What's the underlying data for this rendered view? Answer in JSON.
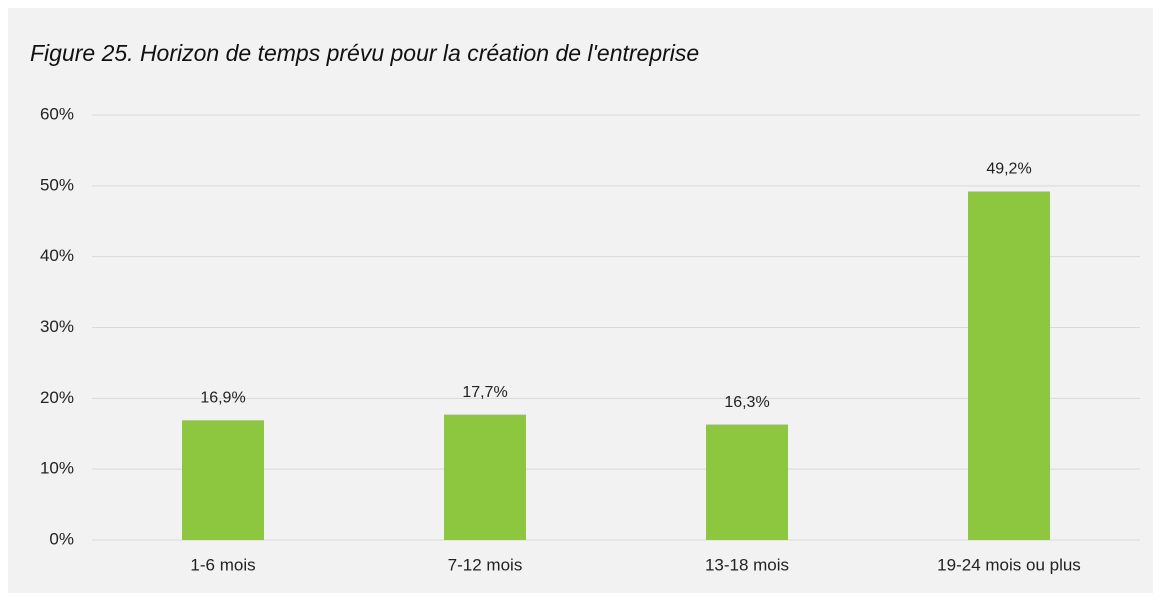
{
  "chart_data": {
    "type": "bar",
    "title": "Figure 25. Horizon de temps prévu pour la création de l'entreprise",
    "categories": [
      "1-6 mois",
      "7-12 mois",
      "13-18 mois",
      "19-24 mois ou plus"
    ],
    "values": [
      16.9,
      17.7,
      16.3,
      49.2
    ],
    "value_labels": [
      "16,9%",
      "17,7%",
      "16,3%",
      "49,2%"
    ],
    "color": "#8dc63f",
    "ylim": [
      0,
      60
    ],
    "yticks": [
      {
        "value": 0,
        "label": "0%"
      },
      {
        "value": 10,
        "label": "10%"
      },
      {
        "value": 20,
        "label": "20%"
      },
      {
        "value": 30,
        "label": "30%"
      },
      {
        "value": 40,
        "label": "40%"
      },
      {
        "value": 50,
        "label": "50%"
      },
      {
        "value": 60,
        "label": "60%"
      }
    ],
    "grid": true
  }
}
